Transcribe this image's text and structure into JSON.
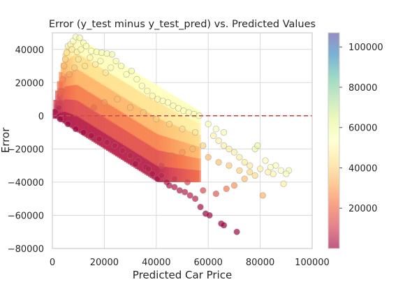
{
  "chart_data": {
    "type": "scatter",
    "title": "Error (y_test minus y_test_pred) vs. Predicted Values",
    "xlabel": "Predicted Car Price",
    "ylabel": "Error",
    "xlim": [
      0,
      100000
    ],
    "ylim": [
      -80000,
      50000
    ],
    "x_ticks": [
      0,
      20000,
      40000,
      60000,
      80000,
      100000
    ],
    "x_tick_labels": [
      "0",
      "20000",
      "40000",
      "60000",
      "80000",
      "100000"
    ],
    "y_ticks": [
      -80000,
      -60000,
      -40000,
      -20000,
      0,
      20000,
      40000
    ],
    "y_tick_labels": [
      "−80000",
      "−60000",
      "−40000",
      "−20000",
      "0",
      "20000",
      "40000"
    ],
    "grid": true,
    "reference_line": {
      "y": 0,
      "style": "dashed",
      "color": "#c44e52"
    },
    "color_encoding": "actual price (predicted + error)",
    "colormap": "Spectral",
    "colorbar": {
      "range": [
        0,
        107000
      ],
      "ticks": [
        20000,
        40000,
        60000,
        80000,
        100000
      ],
      "tick_labels": [
        "20000",
        "40000",
        "60000",
        "80000",
        "100000"
      ]
    },
    "point_alpha": 0.7,
    "points": [
      [
        700,
        0
      ],
      [
        1200,
        2500
      ],
      [
        2500,
        5000
      ],
      [
        3000,
        8000
      ],
      [
        3500,
        15000
      ],
      [
        4000,
        22000
      ],
      [
        4500,
        30000
      ],
      [
        5000,
        34000
      ],
      [
        5500,
        38000
      ],
      [
        6000,
        42000
      ],
      [
        7000,
        43000
      ],
      [
        8000,
        45000
      ],
      [
        9000,
        47500
      ],
      [
        10500,
        47000
      ],
      [
        12000,
        44000
      ],
      [
        7500,
        40000
      ],
      [
        9500,
        38500
      ],
      [
        11000,
        40000
      ],
      [
        13000,
        42000
      ],
      [
        15000,
        39000
      ],
      [
        17000,
        38500
      ],
      [
        19000,
        38000
      ],
      [
        21000,
        37500
      ],
      [
        23000,
        37000
      ],
      [
        6500,
        25000
      ],
      [
        8500,
        29000
      ],
      [
        10000,
        34000
      ],
      [
        12500,
        30000
      ],
      [
        14500,
        35000
      ],
      [
        16500,
        31000
      ],
      [
        18500,
        33000
      ],
      [
        20500,
        26000
      ],
      [
        22500,
        29000
      ],
      [
        24500,
        33000
      ],
      [
        26500,
        30000
      ],
      [
        28500,
        25000
      ],
      [
        30500,
        27000
      ],
      [
        32500,
        22000
      ],
      [
        34500,
        18000
      ],
      [
        36500,
        15000
      ],
      [
        38500,
        12000
      ],
      [
        40500,
        10000
      ],
      [
        42500,
        9000
      ],
      [
        44500,
        8000
      ],
      [
        46500,
        6000
      ],
      [
        48500,
        4500
      ],
      [
        50500,
        3000
      ],
      [
        52500,
        2000
      ],
      [
        54500,
        1000
      ],
      [
        56500,
        0
      ],
      [
        3000,
        -2000
      ],
      [
        6000,
        -5000
      ],
      [
        9000,
        -8000
      ],
      [
        12000,
        -10000
      ],
      [
        15000,
        -12000
      ],
      [
        18000,
        -14000
      ],
      [
        21000,
        -16000
      ],
      [
        24000,
        -18000
      ],
      [
        27000,
        -21000
      ],
      [
        30000,
        -24000
      ],
      [
        33000,
        -27000
      ],
      [
        36000,
        -31000
      ],
      [
        38500,
        -35000
      ],
      [
        40500,
        -38000
      ],
      [
        42000,
        -36000
      ],
      [
        44000,
        -40000
      ],
      [
        45000,
        -42000
      ],
      [
        47000,
        -43000
      ],
      [
        49000,
        -45000
      ],
      [
        51000,
        -46000
      ],
      [
        53000,
        -48000
      ],
      [
        55000,
        -50000
      ],
      [
        57000,
        -55000
      ],
      [
        59000,
        -59000
      ],
      [
        60500,
        -60000
      ],
      [
        65000,
        -65000
      ],
      [
        66000,
        -66000
      ],
      [
        71000,
        -70000
      ],
      [
        16000,
        5000
      ],
      [
        20000,
        8000
      ],
      [
        25000,
        10000
      ],
      [
        30000,
        5000
      ],
      [
        35000,
        2000
      ],
      [
        40000,
        -2000
      ],
      [
        45000,
        -5000
      ],
      [
        50000,
        -8000
      ],
      [
        55000,
        -10000
      ],
      [
        60000,
        -5000
      ],
      [
        62000,
        -12000
      ],
      [
        64000,
        -15000
      ],
      [
        66000,
        -18000
      ],
      [
        68000,
        -20000
      ],
      [
        70000,
        -22000
      ],
      [
        72000,
        -25000
      ],
      [
        74000,
        -28000
      ],
      [
        76000,
        -30000
      ],
      [
        78000,
        -20000
      ],
      [
        79000,
        -18000
      ],
      [
        80000,
        -32000
      ],
      [
        82000,
        -27000
      ],
      [
        84000,
        -31000
      ],
      [
        86000,
        -30000
      ],
      [
        88000,
        -33000
      ],
      [
        89000,
        -41000
      ],
      [
        91000,
        -33000
      ],
      [
        90000,
        -35000
      ],
      [
        85000,
        -35000
      ],
      [
        83000,
        -34000
      ],
      [
        81000,
        -48000
      ],
      [
        78000,
        -36000
      ],
      [
        74000,
        -38000
      ],
      [
        70000,
        -42000
      ],
      [
        67000,
        -44000
      ],
      [
        63000,
        -47000
      ],
      [
        58000,
        -45000
      ],
      [
        52000,
        -40000
      ],
      [
        47000,
        -38000
      ],
      [
        42000,
        -30000
      ],
      [
        37000,
        -32000
      ],
      [
        32000,
        -29000
      ],
      [
        60000,
        -25000
      ],
      [
        64000,
        -28000
      ],
      [
        68000,
        -30000
      ],
      [
        72000,
        -33000
      ],
      [
        76000,
        -34000
      ],
      [
        58000,
        -18000
      ],
      [
        54000,
        -20000
      ],
      [
        50000,
        -22000
      ],
      [
        46000,
        -24000
      ],
      [
        66000,
        -10000
      ],
      [
        63000,
        -8000
      ]
    ]
  }
}
